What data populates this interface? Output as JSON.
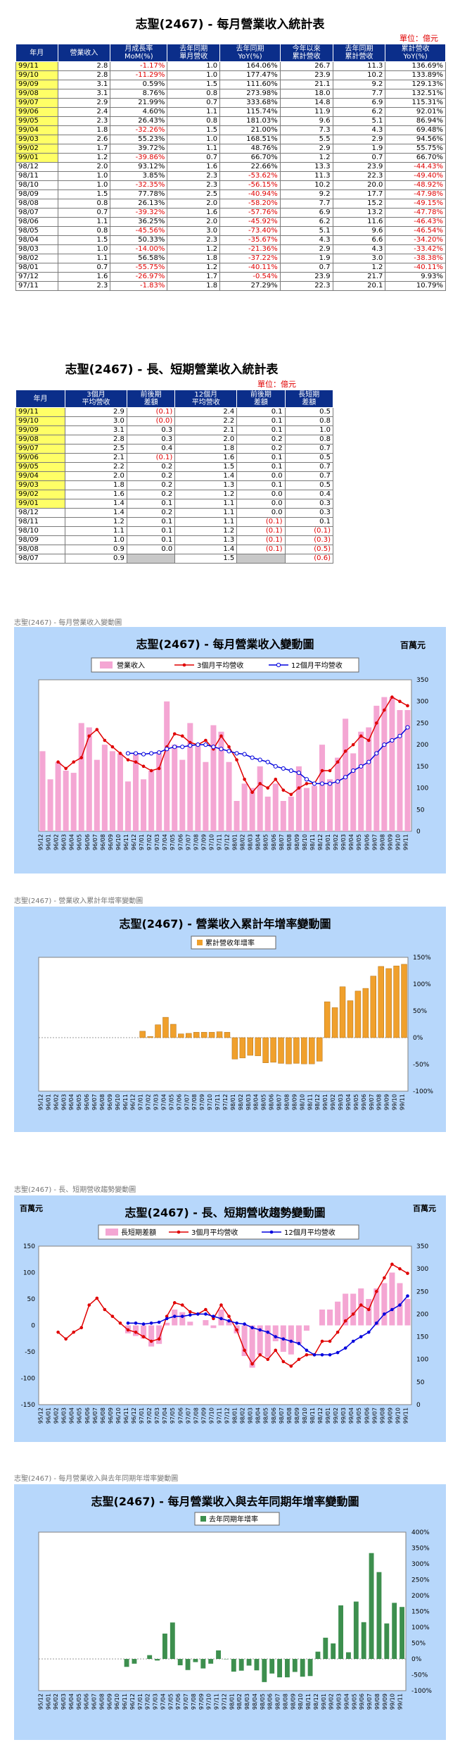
{
  "monthly_table": {
    "title": "志聖(2467) - 每月營業收入統計表",
    "unit": "單位：億元",
    "headers": [
      "年月",
      "營業收入",
      "月成長率\nMoM(%)",
      "去年同期\n單月營收",
      "去年同期\nYoY(%)",
      "今年以來\n累計營收",
      "去年同期\n累計營收",
      "累計營收\nYoY(%)"
    ],
    "rows": [
      [
        "99/11",
        "2.8",
        "-1.17%",
        "1.0",
        "164.06%",
        "26.7",
        "11.3",
        "136.69%"
      ],
      [
        "99/10",
        "2.8",
        "-11.29%",
        "1.0",
        "177.47%",
        "23.9",
        "10.2",
        "133.89%"
      ],
      [
        "99/09",
        "3.1",
        "0.59%",
        "1.5",
        "111.60%",
        "21.1",
        "9.2",
        "129.13%"
      ],
      [
        "99/08",
        "3.1",
        "8.76%",
        "0.8",
        "273.98%",
        "18.0",
        "7.7",
        "132.51%"
      ],
      [
        "99/07",
        "2.9",
        "21.99%",
        "0.7",
        "333.68%",
        "14.8",
        "6.9",
        "115.31%"
      ],
      [
        "99/06",
        "2.4",
        "4.60%",
        "1.1",
        "115.74%",
        "11.9",
        "6.2",
        "92.01%"
      ],
      [
        "99/05",
        "2.3",
        "26.43%",
        "0.8",
        "181.03%",
        "9.6",
        "5.1",
        "86.94%"
      ],
      [
        "99/04",
        "1.8",
        "-32.26%",
        "1.5",
        "21.00%",
        "7.3",
        "4.3",
        "69.48%"
      ],
      [
        "99/03",
        "2.6",
        "55.23%",
        "1.0",
        "168.51%",
        "5.5",
        "2.9",
        "94.56%"
      ],
      [
        "99/02",
        "1.7",
        "39.72%",
        "1.1",
        "48.76%",
        "2.9",
        "1.9",
        "55.75%"
      ],
      [
        "99/01",
        "1.2",
        "-39.86%",
        "0.7",
        "66.70%",
        "1.2",
        "0.7",
        "66.70%"
      ],
      [
        "98/12",
        "2.0",
        "93.12%",
        "1.6",
        "22.66%",
        "13.3",
        "23.9",
        "-44.43%"
      ],
      [
        "98/11",
        "1.0",
        "3.85%",
        "2.3",
        "-53.62%",
        "11.3",
        "22.3",
        "-49.40%"
      ],
      [
        "98/10",
        "1.0",
        "-32.35%",
        "2.3",
        "-56.15%",
        "10.2",
        "20.0",
        "-48.92%"
      ],
      [
        "98/09",
        "1.5",
        "77.78%",
        "2.5",
        "-40.94%",
        "9.2",
        "17.7",
        "-47.98%"
      ],
      [
        "98/08",
        "0.8",
        "26.13%",
        "2.0",
        "-58.20%",
        "7.7",
        "15.2",
        "-49.15%"
      ],
      [
        "98/07",
        "0.7",
        "-39.32%",
        "1.6",
        "-57.76%",
        "6.9",
        "13.2",
        "-47.78%"
      ],
      [
        "98/06",
        "1.1",
        "36.25%",
        "2.0",
        "-45.92%",
        "6.2",
        "11.6",
        "-46.43%"
      ],
      [
        "98/05",
        "0.8",
        "-45.56%",
        "3.0",
        "-73.40%",
        "5.1",
        "9.6",
        "-46.54%"
      ],
      [
        "98/04",
        "1.5",
        "50.33%",
        "2.3",
        "-35.67%",
        "4.3",
        "6.6",
        "-34.20%"
      ],
      [
        "98/03",
        "1.0",
        "-14.00%",
        "1.2",
        "-21.36%",
        "2.9",
        "4.3",
        "-33.42%"
      ],
      [
        "98/02",
        "1.1",
        "56.58%",
        "1.8",
        "-37.22%",
        "1.9",
        "3.0",
        "-38.38%"
      ],
      [
        "98/01",
        "0.7",
        "-55.75%",
        "1.2",
        "-40.11%",
        "0.7",
        "1.2",
        "-40.11%"
      ],
      [
        "97/12",
        "1.6",
        "-26.97%",
        "1.7",
        "-0.54%",
        "23.9",
        "21.7",
        "9.93%"
      ],
      [
        "97/11",
        "2.3",
        "-1.83%",
        "1.8",
        "27.29%",
        "22.3",
        "20.1",
        "10.79%"
      ]
    ]
  },
  "trend_table": {
    "title": "志聖(2467) - 長、短期營業收入統計表",
    "unit": "單位：億元",
    "headers": [
      "年月",
      "3個月\n平均營收",
      "前後期\n差額",
      "12個月\n平均營收",
      "前後期\n差額",
      "長短期\n差額"
    ],
    "rows": [
      [
        "99/11",
        "2.9",
        "(0.1)",
        "2.4",
        "0.1",
        "0.5"
      ],
      [
        "99/10",
        "3.0",
        "(0.0)",
        "2.2",
        "0.1",
        "0.8"
      ],
      [
        "99/09",
        "3.1",
        "0.3",
        "2.1",
        "0.1",
        "1.0"
      ],
      [
        "99/08",
        "2.8",
        "0.3",
        "2.0",
        "0.2",
        "0.8"
      ],
      [
        "99/07",
        "2.5",
        "0.4",
        "1.8",
        "0.2",
        "0.7"
      ],
      [
        "99/06",
        "2.1",
        "(0.1)",
        "1.6",
        "0.1",
        "0.5"
      ],
      [
        "99/05",
        "2.2",
        "0.2",
        "1.5",
        "0.1",
        "0.7"
      ],
      [
        "99/04",
        "2.0",
        "0.2",
        "1.4",
        "0.0",
        "0.7"
      ],
      [
        "99/03",
        "1.8",
        "0.2",
        "1.3",
        "0.1",
        "0.5"
      ],
      [
        "99/02",
        "1.6",
        "0.2",
        "1.2",
        "0.0",
        "0.4"
      ],
      [
        "99/01",
        "1.4",
        "0.1",
        "1.1",
        "0.0",
        "0.3"
      ],
      [
        "98/12",
        "1.4",
        "0.2",
        "1.1",
        "0.0",
        "0.3"
      ],
      [
        "98/11",
        "1.2",
        "0.1",
        "1.1",
        "(0.1)",
        "0.1"
      ],
      [
        "98/10",
        "1.1",
        "0.1",
        "1.2",
        "(0.1)",
        "(0.1)"
      ],
      [
        "98/09",
        "1.0",
        "0.1",
        "1.3",
        "(0.1)",
        "(0.3)"
      ],
      [
        "98/08",
        "0.9",
        "0.0",
        "1.4",
        "(0.1)",
        "(0.5)"
      ],
      [
        "98/07",
        "0.9",
        "",
        "1.5",
        "",
        "(0.6)"
      ]
    ]
  },
  "section_labels": {
    "chart1": "志聖(2467) - 每月營業收入變動圖",
    "chart2": "志聖(2467) -  營業收入累計年增率變動圖",
    "chart3": "志聖(2467) -  長、短期營收趨勢變動圖",
    "chart4": "志聖(2467) -  每月營業收入與去年同期年增率變動圖"
  },
  "colors": {
    "header_blue": "#0b2e8a",
    "highlight_yellow": "#ffff66",
    "negative_red": "#e00000",
    "panel_blue": "#b7d7fb",
    "bar_pink": "#f4a6d3",
    "bar_orange": "#f0a02c",
    "bar_green": "#3d8f4e",
    "line_red": "#e00000",
    "line_blue": "#0000dd"
  },
  "chart_data": [
    {
      "type": "bar",
      "title": "志聖(2467) - 每月營業收入變動圖",
      "unit_label": "百萬元",
      "categories": [
        "95/12",
        "96/01",
        "96/02",
        "96/03",
        "96/04",
        "96/05",
        "96/06",
        "96/07",
        "96/08",
        "96/09",
        "96/10",
        "96/11",
        "96/12",
        "97/01",
        "97/02",
        "97/03",
        "97/04",
        "97/05",
        "97/06",
        "97/07",
        "97/08",
        "97/09",
        "97/10",
        "97/11",
        "97/12",
        "98/01",
        "98/02",
        "98/03",
        "98/04",
        "98/05",
        "98/06",
        "98/07",
        "98/08",
        "98/09",
        "98/10",
        "98/11",
        "98/12",
        "99/01",
        "99/02",
        "99/03",
        "99/04",
        "99/05",
        "99/06",
        "99/07",
        "99/08",
        "99/09",
        "99/10",
        "99/11"
      ],
      "series": [
        {
          "name": "營業收入",
          "type": "bar",
          "values": [
            185,
            120,
            160,
            140,
            135,
            250,
            240,
            165,
            200,
            185,
            180,
            115,
            180,
            120,
            140,
            180,
            300,
            200,
            165,
            250,
            200,
            160,
            245,
            230,
            160,
            70,
            110,
            100,
            150,
            80,
            110,
            70,
            80,
            150,
            100,
            105,
            200,
            120,
            170,
            260,
            180,
            230,
            240,
            290,
            310,
            310,
            280,
            280
          ]
        },
        {
          "name": "3個月平均營收",
          "type": "line",
          "values": [
            null,
            null,
            160,
            145,
            160,
            170,
            220,
            235,
            210,
            195,
            180,
            165,
            160,
            150,
            140,
            145,
            195,
            225,
            220,
            205,
            200,
            210,
            190,
            220,
            195,
            165,
            120,
            90,
            110,
            100,
            120,
            95,
            85,
            100,
            110,
            110,
            140,
            140,
            160,
            185,
            200,
            220,
            210,
            250,
            280,
            310,
            300,
            290
          ]
        },
        {
          "name": "12個月平均營收",
          "type": "line",
          "values": [
            null,
            null,
            null,
            null,
            null,
            null,
            null,
            null,
            null,
            null,
            null,
            180,
            180,
            178,
            180,
            182,
            190,
            195,
            195,
            198,
            200,
            200,
            195,
            190,
            185,
            180,
            178,
            170,
            165,
            160,
            150,
            145,
            140,
            135,
            120,
            110,
            110,
            110,
            115,
            125,
            140,
            150,
            160,
            180,
            200,
            210,
            220,
            240
          ]
        }
      ],
      "ylim": [
        0,
        350
      ],
      "ytick_labels": [
        "0",
        "50",
        "100",
        "150",
        "200",
        "250",
        "300",
        "350"
      ]
    },
    {
      "type": "bar",
      "title": "志聖(2467) -  營業收入累計年增率變動圖",
      "legend": "累計營收年增率",
      "categories": [
        "95/12",
        "96/01",
        "96/02",
        "96/03",
        "96/04",
        "96/05",
        "96/06",
        "96/07",
        "96/08",
        "96/09",
        "96/10",
        "96/11",
        "96/12",
        "97/01",
        "97/02",
        "97/03",
        "97/04",
        "97/05",
        "97/06",
        "97/07",
        "97/08",
        "97/09",
        "97/10",
        "97/11",
        "97/12",
        "98/01",
        "98/02",
        "98/03",
        "98/04",
        "98/05",
        "98/06",
        "98/07",
        "98/08",
        "98/09",
        "98/10",
        "98/11",
        "98/12",
        "99/01",
        "99/02",
        "99/03",
        "99/04",
        "99/05",
        "99/06",
        "99/07",
        "99/08",
        "99/09",
        "99/10",
        "99/11"
      ],
      "series": [
        {
          "name": "累計營收年增率",
          "values": [
            0,
            0,
            0,
            0,
            0,
            0,
            0,
            0,
            0,
            0,
            0,
            0,
            0,
            12,
            2,
            24,
            38,
            25,
            7,
            8,
            10,
            10,
            10,
            11,
            10,
            -40,
            -38,
            -33,
            -34,
            -47,
            -46,
            -48,
            -49,
            -48,
            -49,
            -49,
            -44,
            67,
            56,
            95,
            69,
            87,
            92,
            115,
            133,
            129,
            134,
            137
          ]
        }
      ],
      "ylim": [
        -100,
        150
      ],
      "ytick_labels": [
        "-100%",
        "-50%",
        "0%",
        "50%",
        "100%",
        "150%"
      ]
    },
    {
      "type": "bar",
      "title": "志聖(2467) - 長、短期營收趨勢變動圖",
      "unit_label": "百萬元",
      "categories": [
        "95/12",
        "96/01",
        "96/02",
        "96/03",
        "96/04",
        "96/05",
        "96/06",
        "96/07",
        "96/08",
        "96/09",
        "96/10",
        "96/11",
        "96/12",
        "97/01",
        "97/02",
        "97/03",
        "97/04",
        "97/05",
        "97/06",
        "97/07",
        "97/08",
        "97/09",
        "97/10",
        "97/11",
        "97/12",
        "98/01",
        "98/02",
        "98/03",
        "98/04",
        "98/05",
        "98/06",
        "98/07",
        "98/08",
        "98/09",
        "98/10",
        "98/11",
        "98/12",
        "99/01",
        "99/02",
        "99/03",
        "99/04",
        "99/05",
        "99/06",
        "99/07",
        "99/08",
        "99/09",
        "99/10",
        "99/11"
      ],
      "series": [
        {
          "name": "長短期差額",
          "type": "bar",
          "values": [
            null,
            null,
            null,
            null,
            null,
            null,
            null,
            null,
            null,
            null,
            null,
            -15,
            -20,
            -25,
            -40,
            -35,
            5,
            30,
            25,
            7,
            0,
            10,
            -5,
            30,
            10,
            -15,
            -58,
            -80,
            -55,
            -60,
            -30,
            -50,
            -55,
            -35,
            -10,
            0,
            30,
            30,
            45,
            60,
            60,
            70,
            50,
            70,
            80,
            100,
            80,
            50
          ]
        },
        {
          "name": "3個月平均營收",
          "type": "line",
          "values": [
            null,
            null,
            160,
            145,
            160,
            170,
            220,
            235,
            210,
            195,
            180,
            165,
            160,
            150,
            140,
            145,
            195,
            225,
            220,
            205,
            200,
            210,
            190,
            220,
            195,
            165,
            120,
            90,
            110,
            100,
            120,
            95,
            85,
            100,
            110,
            110,
            140,
            140,
            160,
            185,
            200,
            220,
            210,
            250,
            280,
            310,
            300,
            290
          ]
        },
        {
          "name": "12個月平均營收",
          "type": "line",
          "values": [
            null,
            null,
            null,
            null,
            null,
            null,
            null,
            null,
            null,
            null,
            null,
            180,
            180,
            178,
            180,
            182,
            190,
            195,
            195,
            198,
            200,
            200,
            195,
            190,
            185,
            180,
            178,
            170,
            165,
            160,
            150,
            145,
            140,
            135,
            120,
            110,
            110,
            110,
            115,
            125,
            140,
            150,
            160,
            180,
            200,
            210,
            220,
            240
          ]
        }
      ],
      "ylim_left": [
        -150,
        150
      ],
      "ylim_right": [
        0,
        350
      ],
      "ytick_labels_left": [
        "-150",
        "-100",
        "-50",
        "0",
        "50",
        "100",
        "150"
      ],
      "ytick_labels_right": [
        "0",
        "50",
        "100",
        "150",
        "200",
        "250",
        "300",
        "350"
      ]
    },
    {
      "type": "bar",
      "title": "志聖(2467) - 每月營業收入與去年同期年增率變動圖",
      "legend": "去年同期年增率",
      "categories": [
        "95/12",
        "96/01",
        "96/02",
        "96/03",
        "96/04",
        "96/05",
        "96/06",
        "96/07",
        "96/08",
        "96/09",
        "96/10",
        "96/11",
        "96/12",
        "97/01",
        "97/02",
        "97/03",
        "97/04",
        "97/05",
        "97/06",
        "97/07",
        "97/08",
        "97/09",
        "97/10",
        "97/11",
        "97/12",
        "98/01",
        "98/02",
        "98/03",
        "98/04",
        "98/05",
        "98/06",
        "98/07",
        "98/08",
        "98/09",
        "98/10",
        "98/11",
        "98/12",
        "99/01",
        "99/02",
        "99/03",
        "99/04",
        "99/05",
        "99/06",
        "99/07",
        "99/08",
        "99/09",
        "99/10",
        "99/11"
      ],
      "series": [
        {
          "name": "去年同期年增率",
          "values": [
            0,
            0,
            0,
            0,
            0,
            0,
            0,
            0,
            0,
            0,
            0,
            -25,
            -15,
            0,
            12,
            -5,
            80,
            115,
            -20,
            -35,
            -10,
            -30,
            -15,
            27,
            -1,
            -40,
            -37,
            -21,
            -36,
            -73,
            -46,
            -58,
            -58,
            -41,
            -56,
            -54,
            23,
            67,
            49,
            169,
            21,
            181,
            116,
            334,
            274,
            112,
            177,
            164
          ]
        }
      ],
      "ylim": [
        -100,
        400
      ],
      "ytick_labels": [
        "-100%",
        "-50%",
        "0%",
        "50%",
        "100%",
        "150%",
        "200%",
        "250%",
        "300%",
        "350%",
        "400%"
      ]
    }
  ]
}
